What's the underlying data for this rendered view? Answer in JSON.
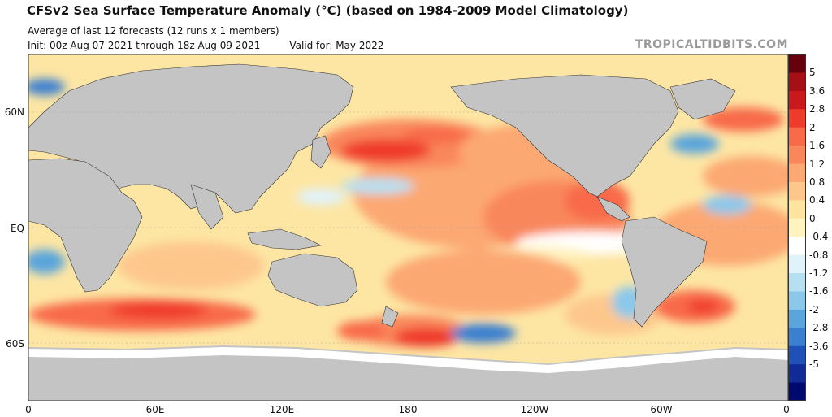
{
  "header": {
    "title": "CFSv2 Sea Surface Temperature Anomaly (°C) (based on 1984-2009 Model Climatology)",
    "subtitle": "Average of last 12 forecasts (12 runs x 1 members)",
    "init": "Init: 00z Aug 07 2021 through 18z Aug 09 2021",
    "valid": "Valid for: May 2022",
    "brand": "TROPICALTIDBITS.COM"
  },
  "axes": {
    "y_labels": [
      "60N",
      "EQ",
      "60S"
    ],
    "x_labels": [
      "0",
      "60E",
      "120E",
      "180",
      "120W",
      "60W",
      "0"
    ]
  },
  "colorbar": {
    "labels": [
      "5",
      "3.6",
      "2.8",
      "2",
      "1.6",
      "1.2",
      "0.8",
      "0.4",
      "0",
      "-0.4",
      "-0.8",
      "-1.2",
      "-1.6",
      "-2",
      "-2.8",
      "-3.6",
      "-5"
    ],
    "colors": [
      "#67000d",
      "#a50f15",
      "#cb181d",
      "#ef3b2c",
      "#f86a4a",
      "#f9875b",
      "#fca872",
      "#fdc78c",
      "#fee49f",
      "#fff3c0",
      "#ffffff",
      "#e0f3fb",
      "#b7dff2",
      "#8cc8ea",
      "#5aa5dc",
      "#3b7fd0",
      "#2051b8",
      "#102b95",
      "#000a6e"
    ]
  },
  "map": {
    "ocean_color": "#fff4c2",
    "land_color": "#c4c4c4",
    "ice_color": "#ffffff",
    "border_color": "#333333"
  }
}
